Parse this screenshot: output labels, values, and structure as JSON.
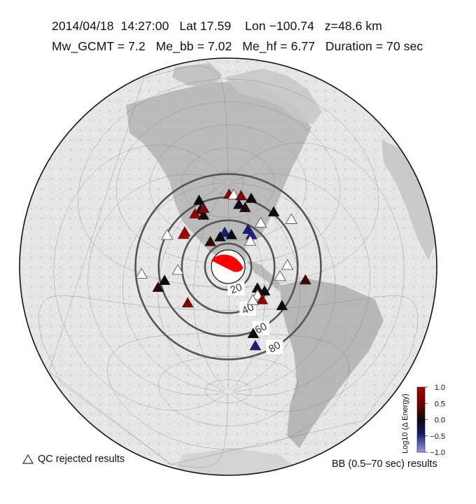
{
  "header": {
    "line1": "2014/04/18  14:27:00   Lat 17.59    Lon −100.74   z=48.6 km",
    "line2": "Mw_GCMT = 7.2   Me_bb = 7.02   Me_hf = 6.77   Duration = 70 sec"
  },
  "rings": [
    "20",
    "40",
    "60",
    "80"
  ],
  "colorbar": {
    "label": "Log10 (Δ Energy)",
    "ticks": [
      "1.0",
      "0.5",
      "0.0",
      "−0.5",
      "−1.0"
    ]
  },
  "legend": {
    "qc_rejected": "QC rejected results",
    "bb_results": "BB (0.5–70 sec) results"
  },
  "colors": {
    "positive": "#a80000",
    "zero": "#0a0a0a",
    "negative": "#1a1f8c",
    "rejected": "#ffffff",
    "beachball": "#ff0000"
  },
  "stations": [
    {
      "lon": -139,
      "lat": 58,
      "v": 0.05
    },
    {
      "lon": -148,
      "lat": 61,
      "v": 0.0
    },
    {
      "lon": -162,
      "lat": 66,
      "v": 0.0
    },
    {
      "lon": -145,
      "lat": 63,
      "v": 0.45
    },
    {
      "lon": -151,
      "lat": 56,
      "v": 0.55
    },
    {
      "lon": -97,
      "lat": 80,
      "v": 0.5
    },
    {
      "lon": -80,
      "lat": 79,
      "v": 0.0,
      "rejected": true
    },
    {
      "lon": -60,
      "lat": 76,
      "v": 0.45
    },
    {
      "lon": -45,
      "lat": 70,
      "v": 0.0
    },
    {
      "lon": -77,
      "lat": 70,
      "v": -0.05
    },
    {
      "lon": -68,
      "lat": 66,
      "v": 0.1
    },
    {
      "lon": -58,
      "lat": 50,
      "v": 0.0,
      "rejected": true
    },
    {
      "lon": -35,
      "lat": 52,
      "v": 0.05
    },
    {
      "lon": -25,
      "lat": 40,
      "v": 0.0,
      "rejected": true
    },
    {
      "lon": -105,
      "lat": 47,
      "v": -0.5
    },
    {
      "lon": -97,
      "lat": 45,
      "v": -0.05
    },
    {
      "lon": -110,
      "lat": 43,
      "v": -0.05
    },
    {
      "lon": -76,
      "lat": 48,
      "v": -0.5
    },
    {
      "lon": -74,
      "lat": 43,
      "v": -0.6
    },
    {
      "lon": -77,
      "lat": 38,
      "v": 0.0,
      "rejected": true
    },
    {
      "lon": -120,
      "lat": 38,
      "v": 0.15
    },
    {
      "lon": -150,
      "lat": 40,
      "v": 0.6
    },
    {
      "lon": -150,
      "lat": 38,
      "v": 0.75
    },
    {
      "lon": -165,
      "lat": 32,
      "v": 0.0,
      "rejected": true
    },
    {
      "lon": -48,
      "lat": 12,
      "v": 0.0,
      "rejected": true
    },
    {
      "lon": -56,
      "lat": 5,
      "v": 0.0,
      "rejected": true
    },
    {
      "lon": -35,
      "lat": -2,
      "v": 0.2
    },
    {
      "lon": -76,
      "lat": -2,
      "v": 0.1
    },
    {
      "lon": -70,
      "lat": -5,
      "v": 0.0
    },
    {
      "lon": -76,
      "lat": -8,
      "v": 0.0,
      "rejected": true
    },
    {
      "lon": -72,
      "lat": -12,
      "v": 0.5
    },
    {
      "lon": -55,
      "lat": -18,
      "v": -0.05
    },
    {
      "lon": -80,
      "lat": -12,
      "v": 0.0,
      "rejected": true
    },
    {
      "lon": -77,
      "lat": -40,
      "v": -0.05
    },
    {
      "lon": -72,
      "lat": -50,
      "v": -0.55
    },
    {
      "lon": -145,
      "lat": 10,
      "v": 0.0,
      "rejected": true
    },
    {
      "lon": -155,
      "lat": 0,
      "v": 0.0
    },
    {
      "lon": -160,
      "lat": -6,
      "v": 0.15
    },
    {
      "lon": -175,
      "lat": 0,
      "v": 0.0,
      "rejected": true
    },
    {
      "lon": -135,
      "lat": -15,
      "v": 0.45
    }
  ]
}
